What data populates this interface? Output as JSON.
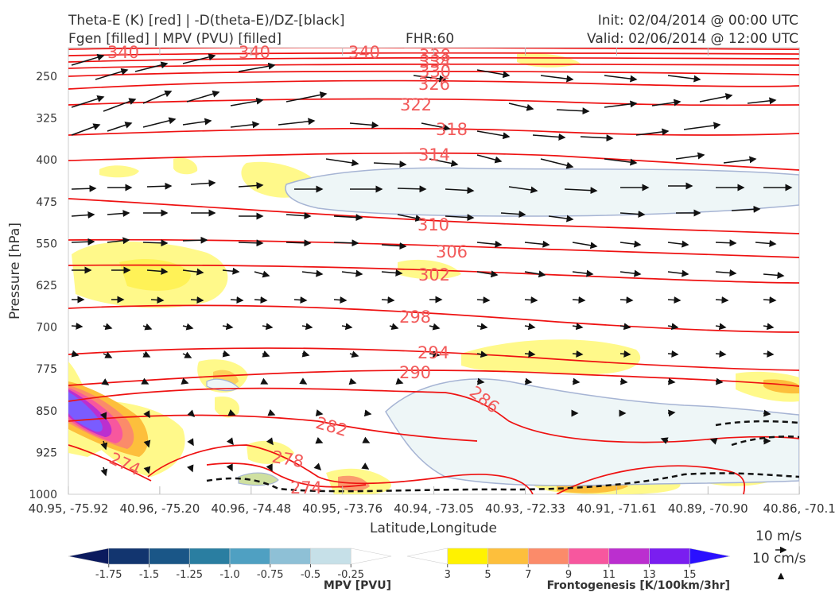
{
  "header": {
    "title_left_1": "Theta-E (K) [red] | -D(theta-E)/DZ-[black]",
    "title_left_2": "Fgen [filled] | MPV (PVU) [filled]",
    "fhr": "FHR:60",
    "init": "Init: 02/04/2014 @ 00:00 UTC",
    "valid": "Valid: 02/06/2014 @ 12:00 UTC"
  },
  "chart_data": {
    "type": "contour",
    "xlabel": "Latitude,Longitude",
    "ylabel": "Pressure [hPa]",
    "y_range": [
      1000,
      190
    ],
    "y_ticks": [
      "250",
      "325",
      "400",
      "475",
      "550",
      "625",
      "700",
      "775",
      "850",
      "925",
      "1000"
    ],
    "x_ticks": [
      "40.95, -75.92",
      "40.96, -75.20",
      "40.96, -74.48",
      "40.95, -73.76",
      "40.94, -73.05",
      "40.93, -72.33",
      "40.91, -71.61",
      "40.89, -70.90",
      "40.86, -70.1"
    ],
    "theta_e_labels": [
      "340",
      "340",
      "340",
      "338",
      "334",
      "330",
      "326",
      "322",
      "318",
      "314",
      "310",
      "306",
      "302",
      "298",
      "294",
      "290",
      "286",
      "282",
      "278",
      "274",
      "274"
    ],
    "theta_e_levels": [
      274,
      278,
      282,
      286,
      290,
      294,
      298,
      302,
      306,
      310,
      314,
      318,
      322,
      326,
      330,
      334,
      338,
      340
    ],
    "mpv_colorbar": {
      "label": "MPV [PVU]",
      "ticks": [
        "-1.75",
        "-1.5",
        "-1.25",
        "-1.0",
        "-0.75",
        "-0.5",
        "-0.25"
      ],
      "colors": [
        "#0b1a5e",
        "#12356f",
        "#1a5687",
        "#2a7ea1",
        "#4fa0c2",
        "#8ec0d6",
        "#c6e0e8",
        "#ffffff"
      ]
    },
    "fgen_colorbar": {
      "label": "Frontogenesis [K/100km/3hr]",
      "ticks": [
        "3",
        "5",
        "7",
        "9",
        "11",
        "13",
        "15"
      ],
      "colors": [
        "#ffffff",
        "#fff200",
        "#fdbf3c",
        "#fb8b6a",
        "#f7579e",
        "#bb2fcf",
        "#7a1ef0",
        "#2a10ff"
      ]
    },
    "wind_reference": [
      "10 m/s",
      "10 cm/s"
    ]
  }
}
